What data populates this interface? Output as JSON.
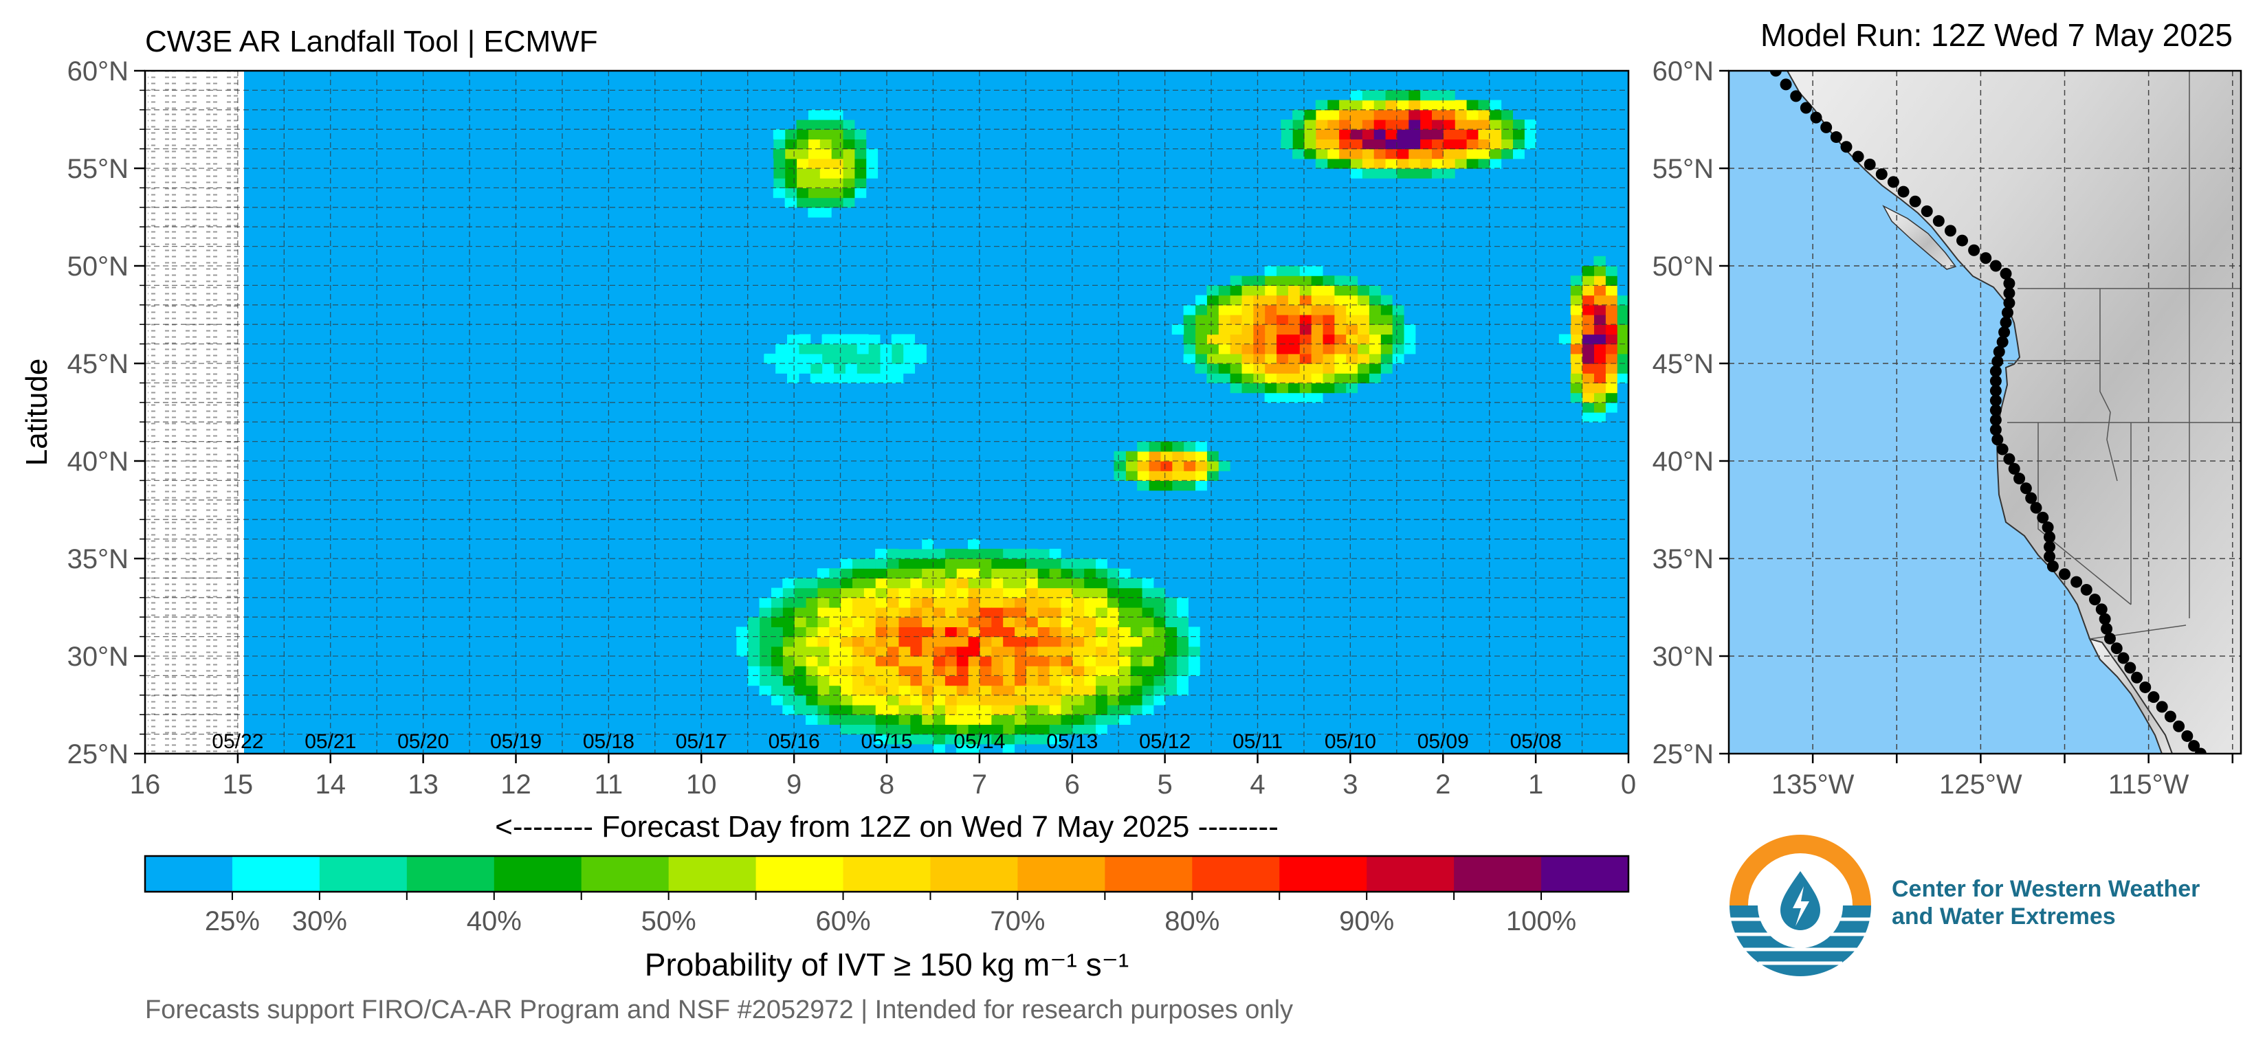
{
  "header": {
    "title": "CW3E AR Landfall Tool | ECMWF",
    "model_run": "Model Run: 12Z Wed 7 May 2025"
  },
  "footer": {
    "credit": "Forecasts support FIRO/CA-AR Program and NSF #2052972 | Intended for research purposes only"
  },
  "logo": {
    "line1": "Center for Western Weather",
    "line2": "and Water Extremes",
    "colors": {
      "orange": "#F7941D",
      "blue": "#1E7FA6",
      "text": "#1B6E8C"
    }
  },
  "chart_data": [
    {
      "type": "heatmap",
      "ylabel": "Latitude",
      "xlabel": "<-------- Forecast Day from 12Z on Wed 7 May 2025 --------",
      "x_ticks": [
        16,
        15,
        14,
        13,
        12,
        11,
        10,
        9,
        8,
        7,
        6,
        5,
        4,
        3,
        2,
        1,
        0
      ],
      "xlim": [
        16,
        0
      ],
      "ylim": [
        25,
        60
      ],
      "y_ticks": [
        "25°N",
        "30°N",
        "35°N",
        "40°N",
        "45°N",
        "50°N",
        "55°N",
        "60°N"
      ],
      "date_labels": [
        {
          "day": 15,
          "label": "05/22"
        },
        {
          "day": 14,
          "label": "05/21"
        },
        {
          "day": 13,
          "label": "05/20"
        },
        {
          "day": 12,
          "label": "05/19"
        },
        {
          "day": 11,
          "label": "05/18"
        },
        {
          "day": 10,
          "label": "05/17"
        },
        {
          "day": 9,
          "label": "05/16"
        },
        {
          "day": 8,
          "label": "05/15"
        },
        {
          "day": 7,
          "label": "05/14"
        },
        {
          "day": 6,
          "label": "05/13"
        },
        {
          "day": 5,
          "label": "05/12"
        },
        {
          "day": 4,
          "label": "05/11"
        },
        {
          "day": 3,
          "label": "05/10"
        },
        {
          "day": 2,
          "label": "05/09"
        },
        {
          "day": 1,
          "label": "05/08"
        }
      ],
      "no_data_range_days": [
        15,
        16
      ],
      "background_color": "#00AAF5",
      "probability_blobs_percent": [
        {
          "day": [
            9.3,
            8.1
          ],
          "lat": [
            52.5,
            58.0
          ],
          "peak": 60
        },
        {
          "day": [
            3.8,
            1.0
          ],
          "lat": [
            54.5,
            59.0
          ],
          "peak": 100
        },
        {
          "day": [
            4.9,
            2.3
          ],
          "lat": [
            43.0,
            50.0
          ],
          "peak": 85
        },
        {
          "day": [
            0.7,
            0.0
          ],
          "lat": [
            42.0,
            50.5
          ],
          "peak": 100
        },
        {
          "day": [
            5.6,
            4.3
          ],
          "lat": [
            38.5,
            41.0
          ],
          "peak": 80
        },
        {
          "day": [
            9.6,
            7.2
          ],
          "lat": [
            43.5,
            47.0
          ],
          "peak": 32
        },
        {
          "day": [
            9.7,
            4.5
          ],
          "lat": [
            25.0,
            36.0
          ],
          "peak": 80
        }
      ]
    },
    {
      "type": "colorbar",
      "label": "Probability of IVT ≥ 150 kg m⁻¹ s⁻¹",
      "tick_labels": [
        "25%",
        "30%",
        "40%",
        "50%",
        "60%",
        "70%",
        "80%",
        "90%",
        "100%"
      ],
      "tick_values": [
        25,
        30,
        40,
        50,
        60,
        70,
        80,
        90,
        100
      ],
      "range": [
        20,
        105
      ],
      "colors": [
        "#00AAF5",
        "#00FFFF",
        "#00E3A7",
        "#00C853",
        "#00AA00",
        "#55CC00",
        "#AAE600",
        "#FFFF00",
        "#FFE100",
        "#FFC800",
        "#FFA500",
        "#FF7000",
        "#FF3C00",
        "#FF0000",
        "#CC0025",
        "#8B0050",
        "#5A0086"
      ]
    },
    {
      "type": "map",
      "lat_ticks": [
        "25°N",
        "30°N",
        "35°N",
        "40°N",
        "45°N",
        "50°N",
        "55°N",
        "60°N"
      ],
      "lon_ticks": [
        "135°W",
        "125°W",
        "115°W"
      ],
      "lat_range": [
        25,
        60
      ],
      "lon_range": [
        -140,
        -109.5
      ],
      "ocean_color": "#87CBF9",
      "landfall_points": [
        [
          -137.2,
          60.0
        ],
        [
          -136.6,
          59.3
        ],
        [
          -136.0,
          58.7
        ],
        [
          -135.4,
          58.1
        ],
        [
          -134.8,
          57.6
        ],
        [
          -134.2,
          57.1
        ],
        [
          -133.6,
          56.6
        ],
        [
          -133.0,
          56.1
        ],
        [
          -132.3,
          55.6
        ],
        [
          -131.6,
          55.2
        ],
        [
          -130.9,
          54.7
        ],
        [
          -130.2,
          54.3
        ],
        [
          -129.6,
          53.8
        ],
        [
          -128.9,
          53.3
        ],
        [
          -128.2,
          52.8
        ],
        [
          -127.5,
          52.3
        ],
        [
          -126.8,
          51.8
        ],
        [
          -126.1,
          51.3
        ],
        [
          -125.4,
          50.8
        ],
        [
          -124.7,
          50.4
        ],
        [
          -124.1,
          50.0
        ],
        [
          -123.5,
          49.6
        ],
        [
          -123.3,
          49.1
        ],
        [
          -123.3,
          48.6
        ],
        [
          -123.3,
          48.1
        ],
        [
          -123.4,
          47.6
        ],
        [
          -123.5,
          47.1
        ],
        [
          -123.6,
          46.6
        ],
        [
          -123.7,
          46.1
        ],
        [
          -123.9,
          45.6
        ],
        [
          -124.0,
          45.1
        ],
        [
          -124.1,
          44.6
        ],
        [
          -124.1,
          44.1
        ],
        [
          -124.1,
          43.6
        ],
        [
          -124.1,
          43.1
        ],
        [
          -124.1,
          42.6
        ],
        [
          -124.1,
          42.1
        ],
        [
          -124.1,
          41.6
        ],
        [
          -124.0,
          41.1
        ],
        [
          -123.7,
          40.6
        ],
        [
          -123.3,
          40.1
        ],
        [
          -123.0,
          39.6
        ],
        [
          -122.7,
          39.1
        ],
        [
          -122.3,
          38.6
        ],
        [
          -122.0,
          38.1
        ],
        [
          -121.7,
          37.6
        ],
        [
          -121.3,
          37.1
        ],
        [
          -121.0,
          36.6
        ],
        [
          -120.9,
          36.1
        ],
        [
          -120.9,
          35.6
        ],
        [
          -120.9,
          35.1
        ],
        [
          -120.7,
          34.6
        ],
        [
          -120.0,
          34.2
        ],
        [
          -119.3,
          33.8
        ],
        [
          -118.7,
          33.4
        ],
        [
          -118.2,
          32.9
        ],
        [
          -117.8,
          32.4
        ],
        [
          -117.6,
          31.9
        ],
        [
          -117.5,
          31.4
        ],
        [
          -117.3,
          30.9
        ],
        [
          -116.9,
          30.4
        ],
        [
          -116.5,
          29.9
        ],
        [
          -116.1,
          29.4
        ],
        [
          -115.7,
          28.9
        ],
        [
          -115.2,
          28.4
        ],
        [
          -114.7,
          27.9
        ],
        [
          -114.2,
          27.4
        ],
        [
          -113.7,
          26.9
        ],
        [
          -113.2,
          26.4
        ],
        [
          -112.7,
          25.9
        ],
        [
          -112.3,
          25.4
        ],
        [
          -111.9,
          25.0
        ],
        [
          -111.5,
          24.6
        ]
      ]
    }
  ]
}
